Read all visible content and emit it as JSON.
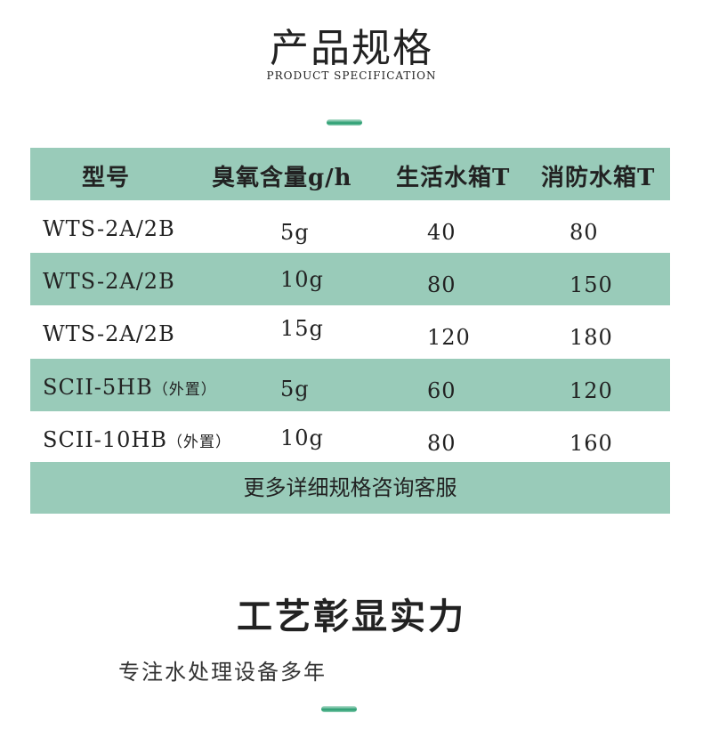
{
  "header": {
    "title": "产品规格",
    "subtitle": "PRODUCT SPECIFICATION"
  },
  "table": {
    "columns": [
      "型号",
      "臭氧含量g/h",
      "生活水箱T",
      "消防水箱T"
    ],
    "rows": [
      {
        "model": "WTS-2A/2B",
        "note": "",
        "ozone": "5g",
        "living": "40",
        "fire": "80"
      },
      {
        "model": "WTS-2A/2B",
        "note": "",
        "ozone": "10g",
        "living": "80",
        "fire": "150"
      },
      {
        "model": "WTS-2A/2B",
        "note": "",
        "ozone": "15g",
        "living": "120",
        "fire": "180"
      },
      {
        "model": "SCII-5HB",
        "note": "（外置）",
        "ozone": "5g",
        "living": "60",
        "fire": "120"
      },
      {
        "model": "SCII-10HB",
        "note": "（外置）",
        "ozone": "10g",
        "living": "80",
        "fire": "160"
      }
    ],
    "footer": "更多详细规格咨询客服"
  },
  "section2": {
    "title": "工艺彰显实力",
    "subtitle": "专注水处理设备多年"
  },
  "colors": {
    "accent": "#99cbb9",
    "dash": "#239a6c"
  }
}
